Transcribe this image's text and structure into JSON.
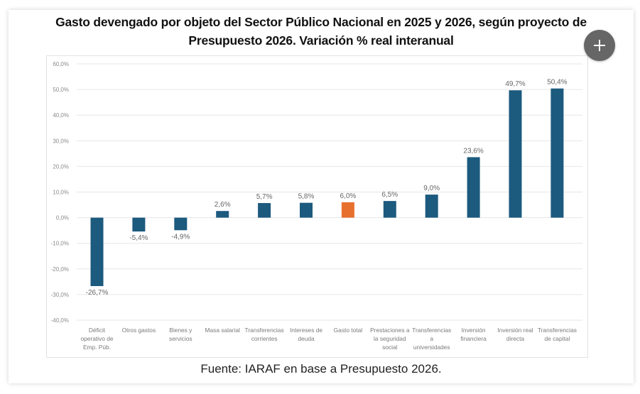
{
  "title_lines": [
    "Gasto devengado por objeto del Sector Público Nacional en 2025 y 2026, según proyecto de",
    "Presupuesto 2026. Variación % real interanual"
  ],
  "source": "Fuente: IARAF en base a Presupuesto 2026.",
  "controls": {
    "expand_button_icon": "plus-icon"
  },
  "colors": {
    "bar_default": "#1c5a7e",
    "bar_highlight": "#e8702e",
    "gridline": "#e6e6e6",
    "axis_text": "#8a8a8a"
  },
  "chart_data": {
    "type": "bar",
    "title": "Gasto devengado por objeto del Sector Público Nacional en 2025 y 2026, según proyecto de Presupuesto 2026. Variación % real interanual",
    "xlabel": "",
    "ylabel": "",
    "ylim": [
      -40,
      60
    ],
    "yticks": [
      60,
      50,
      40,
      30,
      20,
      10,
      0,
      -10,
      -20,
      -30,
      -40
    ],
    "ytick_labels": [
      "60,0%",
      "50,0%",
      "40,0%",
      "30,0%",
      "20,0%",
      "10,0%",
      "0,0%",
      "-10,0%",
      "-20,0%",
      "-30,0%",
      "-40,0%"
    ],
    "grid": true,
    "legend": "none",
    "categories": [
      [
        "Déficit",
        "operativo de",
        "Emp. Púb."
      ],
      [
        "Otros gastos"
      ],
      [
        "Bienes y",
        "servicios"
      ],
      [
        "Masa salarial"
      ],
      [
        "Transferencias",
        "corrientes"
      ],
      [
        "Intereses de",
        "deuda"
      ],
      [
        "Gasto total"
      ],
      [
        "Prestaciones a",
        "la seguridad",
        "social"
      ],
      [
        "Transferencias",
        "a",
        "universidades"
      ],
      [
        "Inversión",
        "financiera"
      ],
      [
        "Inversión real",
        "directa"
      ],
      [
        "Transferencias",
        "de capital"
      ]
    ],
    "values": [
      -26.7,
      -5.4,
      -4.9,
      2.6,
      5.7,
      5.8,
      6.0,
      6.5,
      9.0,
      23.6,
      49.7,
      50.4
    ],
    "data_labels": [
      "-26,7%",
      "-5,4%",
      "-4,9%",
      "2,6%",
      "5,7%",
      "5,8%",
      "6,0%",
      "6,5%",
      "9,0%",
      "23,6%",
      "49,7%",
      "50,4%"
    ],
    "highlight_index": 6,
    "unit": "%"
  }
}
